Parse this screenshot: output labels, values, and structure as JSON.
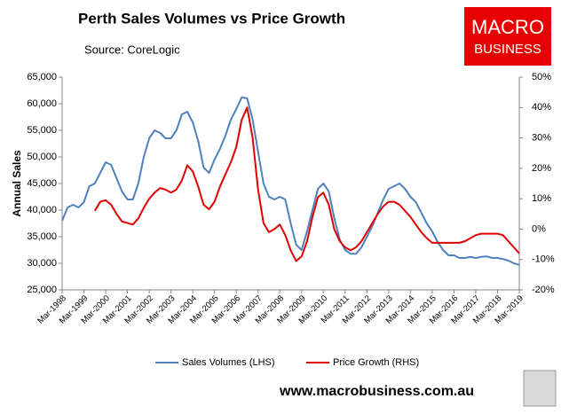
{
  "chart_data": {
    "type": "line",
    "title": "Perth Sales Volumes vs Price Growth",
    "source": "Source: CoreLogic",
    "logo": [
      "MACRO",
      "BUSINESS"
    ],
    "website": "www.macrobusiness.com.au",
    "ylabel": "Annual Sales",
    "categories": [
      "Mar-1998",
      null,
      null,
      null,
      "Mar-1999",
      null,
      null,
      null,
      "Mar-2000",
      null,
      null,
      null,
      "Mar-2001",
      null,
      null,
      null,
      "Mar-2002",
      null,
      null,
      null,
      "Mar-2003",
      null,
      null,
      null,
      "Mar-2004",
      null,
      null,
      null,
      "Mar-2005",
      null,
      null,
      null,
      "Mar-2006",
      null,
      null,
      null,
      "Mar-2007",
      null,
      null,
      null,
      "Mar-2008",
      null,
      null,
      null,
      "Mar-2009",
      null,
      null,
      null,
      "Mar-2010",
      null,
      null,
      null,
      "Mar-2011",
      null,
      null,
      null,
      "Mar-2012",
      null,
      null,
      null,
      "Mar-2013",
      null,
      null,
      null,
      "Mar-2014",
      null,
      null,
      null,
      "Mar-2015",
      null,
      null,
      null,
      "Mar-2016",
      null,
      null,
      null,
      "Mar-2017",
      null,
      null,
      null,
      "Mar-2018",
      null,
      null,
      null,
      "Mar-2019"
    ],
    "series": [
      {
        "name": "Sales Volumes (LHS)",
        "color": "#4f81bd",
        "axis": "y",
        "values": [
          38000,
          40500,
          41000,
          40500,
          41500,
          44500,
          45000,
          47000,
          49000,
          48500,
          46000,
          43500,
          42000,
          42000,
          45000,
          50000,
          53500,
          55000,
          54500,
          53500,
          53500,
          55000,
          58000,
          58500,
          56500,
          53000,
          48000,
          47000,
          49500,
          51500,
          54000,
          57000,
          59000,
          61200,
          61000,
          57000,
          51000,
          45000,
          42500,
          42000,
          42500,
          42000,
          37500,
          33500,
          32500,
          36000,
          40000,
          44000,
          45000,
          43500,
          38500,
          34500,
          32500,
          31800,
          31800,
          33000,
          35000,
          37000,
          39500,
          42000,
          44000,
          44500,
          45000,
          44000,
          42500,
          41500,
          39500,
          37500,
          36000,
          34000,
          32500,
          31500,
          31500,
          31000,
          31000,
          31200,
          31000,
          31200,
          31300,
          31000,
          31000,
          30800,
          30500,
          30000,
          29700
        ]
      },
      {
        "name": "Price Growth (RHS)",
        "color": "#e00000",
        "axis": "y2",
        "values": [
          null,
          null,
          null,
          null,
          null,
          null,
          6,
          9,
          9.5,
          8,
          5,
          2.5,
          2,
          1.5,
          3.5,
          7,
          10,
          12,
          13.5,
          13,
          12,
          13,
          16,
          21,
          19,
          14,
          8,
          6.5,
          9,
          14,
          18,
          22,
          27,
          36,
          40,
          30,
          13,
          2,
          -1,
          0,
          1.5,
          -2,
          -7,
          -10.5,
          -9,
          -4,
          4,
          10.5,
          12,
          8,
          0,
          -4,
          -6,
          -7,
          -6,
          -4,
          -1,
          2,
          5,
          7.5,
          9,
          9,
          8,
          6,
          4,
          1.5,
          -1,
          -3,
          -4.5,
          -4.5,
          -4.5,
          -4.5,
          -4.5,
          -4.5,
          -4,
          -3,
          -2,
          -1.5,
          -1.5,
          -1.5,
          -1.5,
          -2,
          -4,
          -6,
          -8
        ]
      }
    ],
    "ylim": [
      25000,
      65000
    ],
    "yticks": [
      {
        "value": 25000,
        "label": "25,000"
      },
      {
        "value": 30000,
        "label": "30,000"
      },
      {
        "value": 35000,
        "label": "35,000"
      },
      {
        "value": 40000,
        "label": "40,000"
      },
      {
        "value": 45000,
        "label": "45,000"
      },
      {
        "value": 50000,
        "label": "50,000"
      },
      {
        "value": 55000,
        "label": "55,000"
      },
      {
        "value": 60000,
        "label": "60,000"
      },
      {
        "value": 65000,
        "label": "65,000"
      }
    ],
    "y2lim": [
      -20,
      50
    ],
    "y2ticks": [
      {
        "value": -20,
        "label": "-20%"
      },
      {
        "value": -10,
        "label": "-10%"
      },
      {
        "value": 0,
        "label": "0%"
      },
      {
        "value": 10,
        "label": "10%"
      },
      {
        "value": 20,
        "label": "20%"
      },
      {
        "value": 30,
        "label": "30%"
      },
      {
        "value": 40,
        "label": "40%"
      },
      {
        "value": 50,
        "label": "50%"
      }
    ],
    "grid": false
  }
}
